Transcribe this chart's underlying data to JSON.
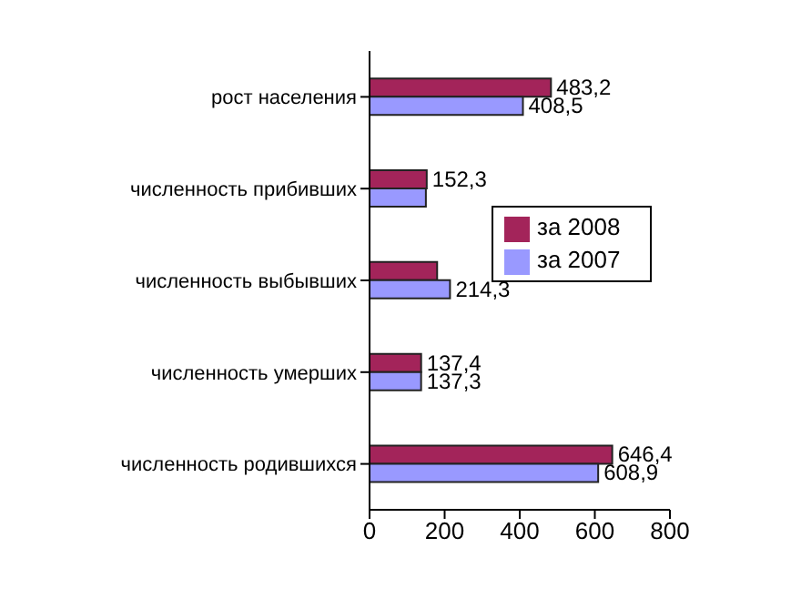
{
  "chart_data": {
    "type": "bar",
    "orientation": "horizontal",
    "categories": [
      "рост населения",
      "численность прибивших",
      "численность выбывших",
      "численность умерших",
      "численность родившихся"
    ],
    "series": [
      {
        "name": "за  2008",
        "color": "#a3245a",
        "values": [
          483.2,
          152.3,
          180,
          137.4,
          646.4
        ],
        "value_labels": [
          "483,2",
          "152,3",
          null,
          "137,4",
          "646,4"
        ]
      },
      {
        "name": "за 2007",
        "color": "#9999ff",
        "values": [
          408.5,
          150,
          214.3,
          137.3,
          608.9
        ],
        "value_labels": [
          "408,5",
          null,
          "214,3",
          "137,3",
          "608,9"
        ]
      }
    ],
    "xlim": [
      0,
      800
    ],
    "xticks": [
      0,
      200,
      400,
      600,
      800
    ],
    "grid": false,
    "legend": "right"
  }
}
